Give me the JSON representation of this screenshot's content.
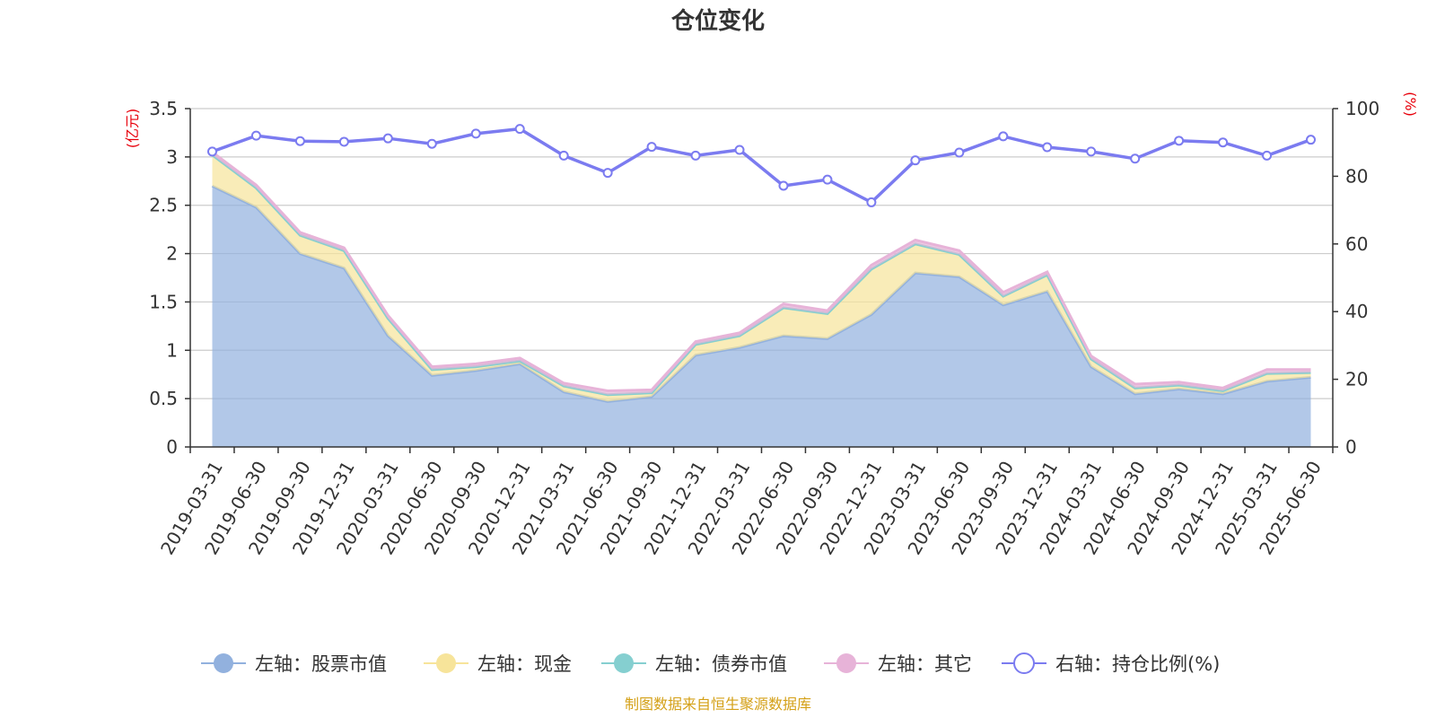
{
  "chart_data": {
    "type": "area",
    "title": "仓位变化",
    "left_axis": {
      "unit": "(亿元)",
      "ylim": [
        0,
        3.5
      ],
      "ticks": [
        "0",
        "0.5",
        "1",
        "1.5",
        "2",
        "2.5",
        "3",
        "3.5"
      ]
    },
    "right_axis": {
      "unit": "(%)",
      "ylim": [
        0,
        100
      ],
      "ticks": [
        "0",
        "20",
        "40",
        "60",
        "80",
        "100"
      ]
    },
    "categories": [
      "2019-03-31",
      "2019-06-30",
      "2019-09-30",
      "2019-12-31",
      "2020-03-31",
      "2020-06-30",
      "2020-09-30",
      "2020-12-31",
      "2021-03-31",
      "2021-06-30",
      "2021-09-30",
      "2021-12-31",
      "2022-03-31",
      "2022-06-30",
      "2022-09-30",
      "2022-12-31",
      "2023-03-31",
      "2023-06-30",
      "2023-09-30",
      "2023-12-31",
      "2024-03-31",
      "2024-06-30",
      "2024-09-30",
      "2024-12-31",
      "2025-03-31",
      "2025-06-30"
    ],
    "series": [
      {
        "name": "左轴：股票市值",
        "axis": "left",
        "stack": true,
        "color": "#92b1de",
        "values": [
          2.7,
          2.48,
          2.0,
          1.85,
          1.15,
          0.74,
          0.79,
          0.86,
          0.57,
          0.47,
          0.52,
          0.95,
          1.03,
          1.15,
          1.12,
          1.37,
          1.8,
          1.76,
          1.47,
          1.61,
          0.83,
          0.55,
          0.6,
          0.55,
          0.68,
          0.72
        ]
      },
      {
        "name": "左轴：现金",
        "axis": "left",
        "stack": true,
        "color": "#f7e49a",
        "values": [
          0.32,
          0.2,
          0.19,
          0.18,
          0.18,
          0.06,
          0.04,
          0.03,
          0.06,
          0.07,
          0.04,
          0.11,
          0.12,
          0.29,
          0.26,
          0.47,
          0.3,
          0.23,
          0.09,
          0.17,
          0.08,
          0.06,
          0.04,
          0.03,
          0.08,
          0.05
        ]
      },
      {
        "name": "左轴：债券市值",
        "axis": "left",
        "stack": true,
        "color": "#85cfd0",
        "values": [
          0,
          0,
          0,
          0,
          0,
          0,
          0,
          0,
          0,
          0,
          0,
          0,
          0,
          0,
          0,
          0,
          0,
          0,
          0,
          0,
          0,
          0,
          0,
          0,
          0,
          0
        ]
      },
      {
        "name": "左轴：其它",
        "axis": "left",
        "stack": true,
        "color": "#e7b3d8",
        "values": [
          0.03,
          0.03,
          0.03,
          0.03,
          0.03,
          0.03,
          0.03,
          0.03,
          0.03,
          0.04,
          0.03,
          0.03,
          0.03,
          0.04,
          0.03,
          0.04,
          0.04,
          0.04,
          0.04,
          0.03,
          0.03,
          0.04,
          0.03,
          0.03,
          0.04,
          0.03
        ]
      },
      {
        "name": "右轴：持仓比例(%)",
        "axis": "right",
        "type": "line",
        "color": "#7b7bf0",
        "values": [
          87.3,
          92.0,
          90.4,
          90.2,
          91.2,
          89.6,
          92.6,
          94.0,
          86.1,
          81.0,
          88.7,
          86.1,
          87.8,
          77.2,
          79.0,
          72.3,
          84.7,
          87.0,
          91.8,
          88.6,
          87.3,
          85.2,
          90.5,
          90.0,
          86.1,
          90.8
        ]
      }
    ],
    "legend_position": "bottom",
    "grid": true
  },
  "footer": {
    "source": "制图数据来自恒生聚源数据库"
  }
}
